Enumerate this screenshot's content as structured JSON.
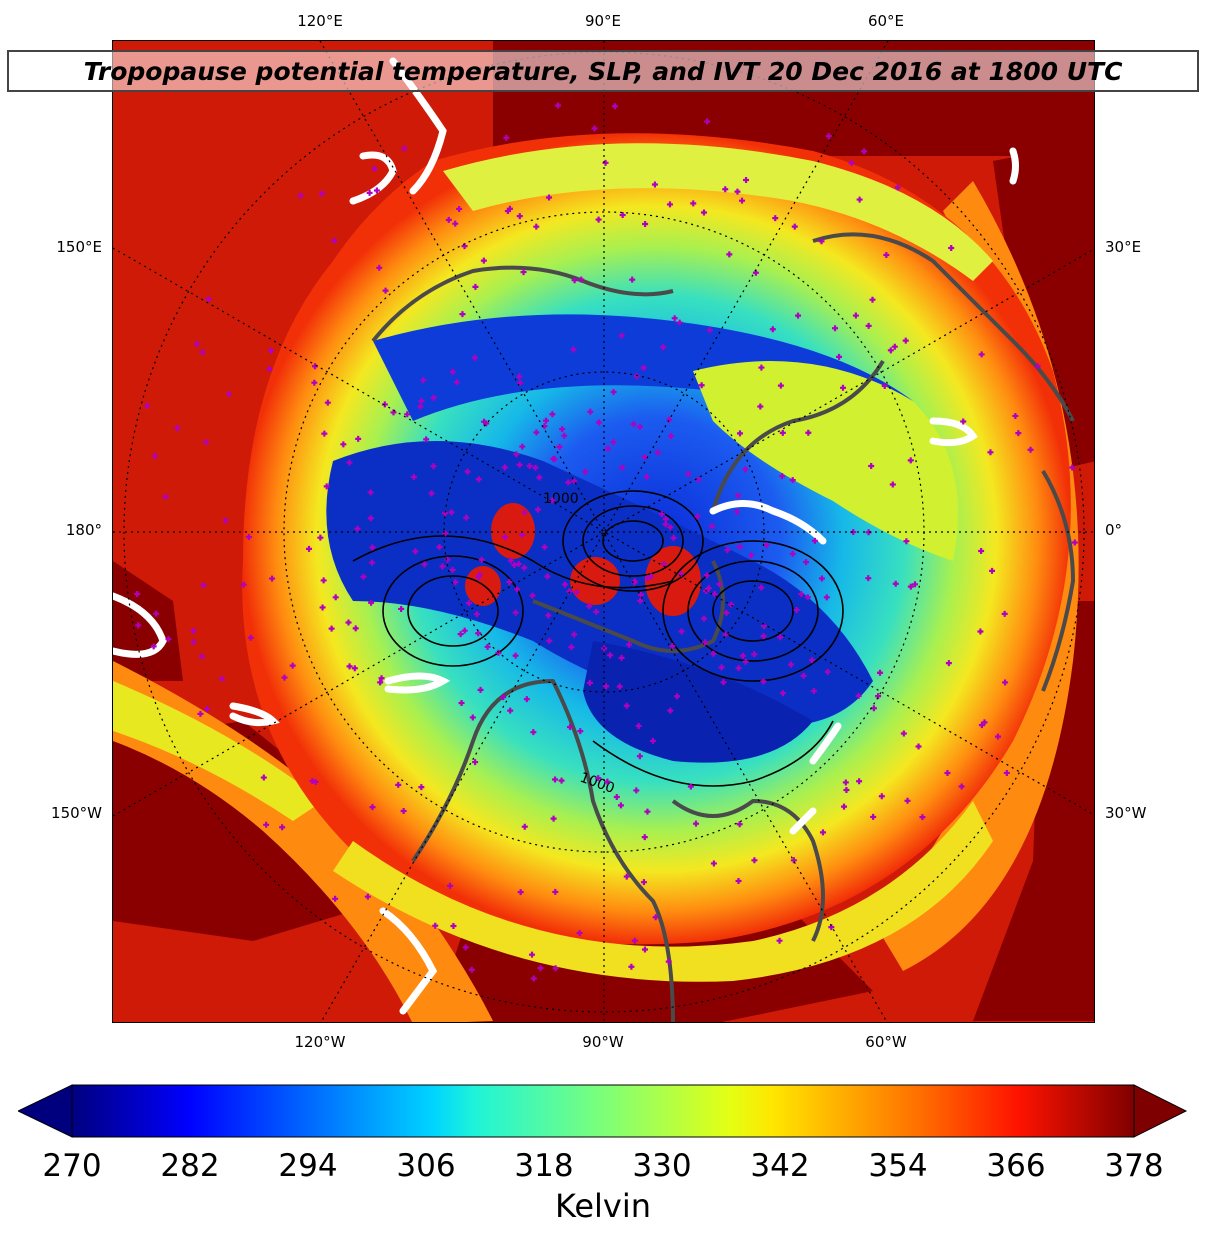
{
  "title": "Tropopause potential temperature, SLP, and IVT 20 Dec 2016 at 1800 UTC",
  "map": {
    "projection": "north-polar-stereographic",
    "top_ticks": [
      "120°E",
      "90°E",
      "60°E"
    ],
    "bottom_ticks": [
      "120°W",
      "90°W",
      "60°W"
    ],
    "left_ticks": [
      "150°E",
      "180°",
      "150°W"
    ],
    "right_ticks": [
      "30°E",
      "0°",
      "30°W"
    ],
    "slp_labels": [
      "1000",
      "1000"
    ],
    "colors": {
      "coast": "#4a4a4a",
      "stations": "#b000c0",
      "ivt": "#ffffff",
      "slp": "#000000"
    }
  },
  "colorbar": {
    "ticks": [
      "270",
      "282",
      "294",
      "306",
      "318",
      "330",
      "342",
      "354",
      "366",
      "378"
    ],
    "min": 270,
    "max": 378,
    "unit": "Kelvin",
    "colormap": "jet"
  }
}
